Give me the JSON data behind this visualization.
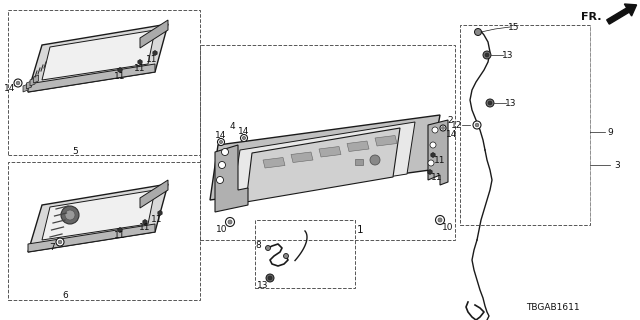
{
  "background_color": "#ffffff",
  "diagram_id": "TBGAB1611",
  "line_color": "#1a1a1a",
  "gray_fill": "#c8c8c8",
  "light_gray": "#e0e0e0",
  "dark_gray": "#555555",
  "label_fs": 6.5,
  "title_fs": 7.5
}
